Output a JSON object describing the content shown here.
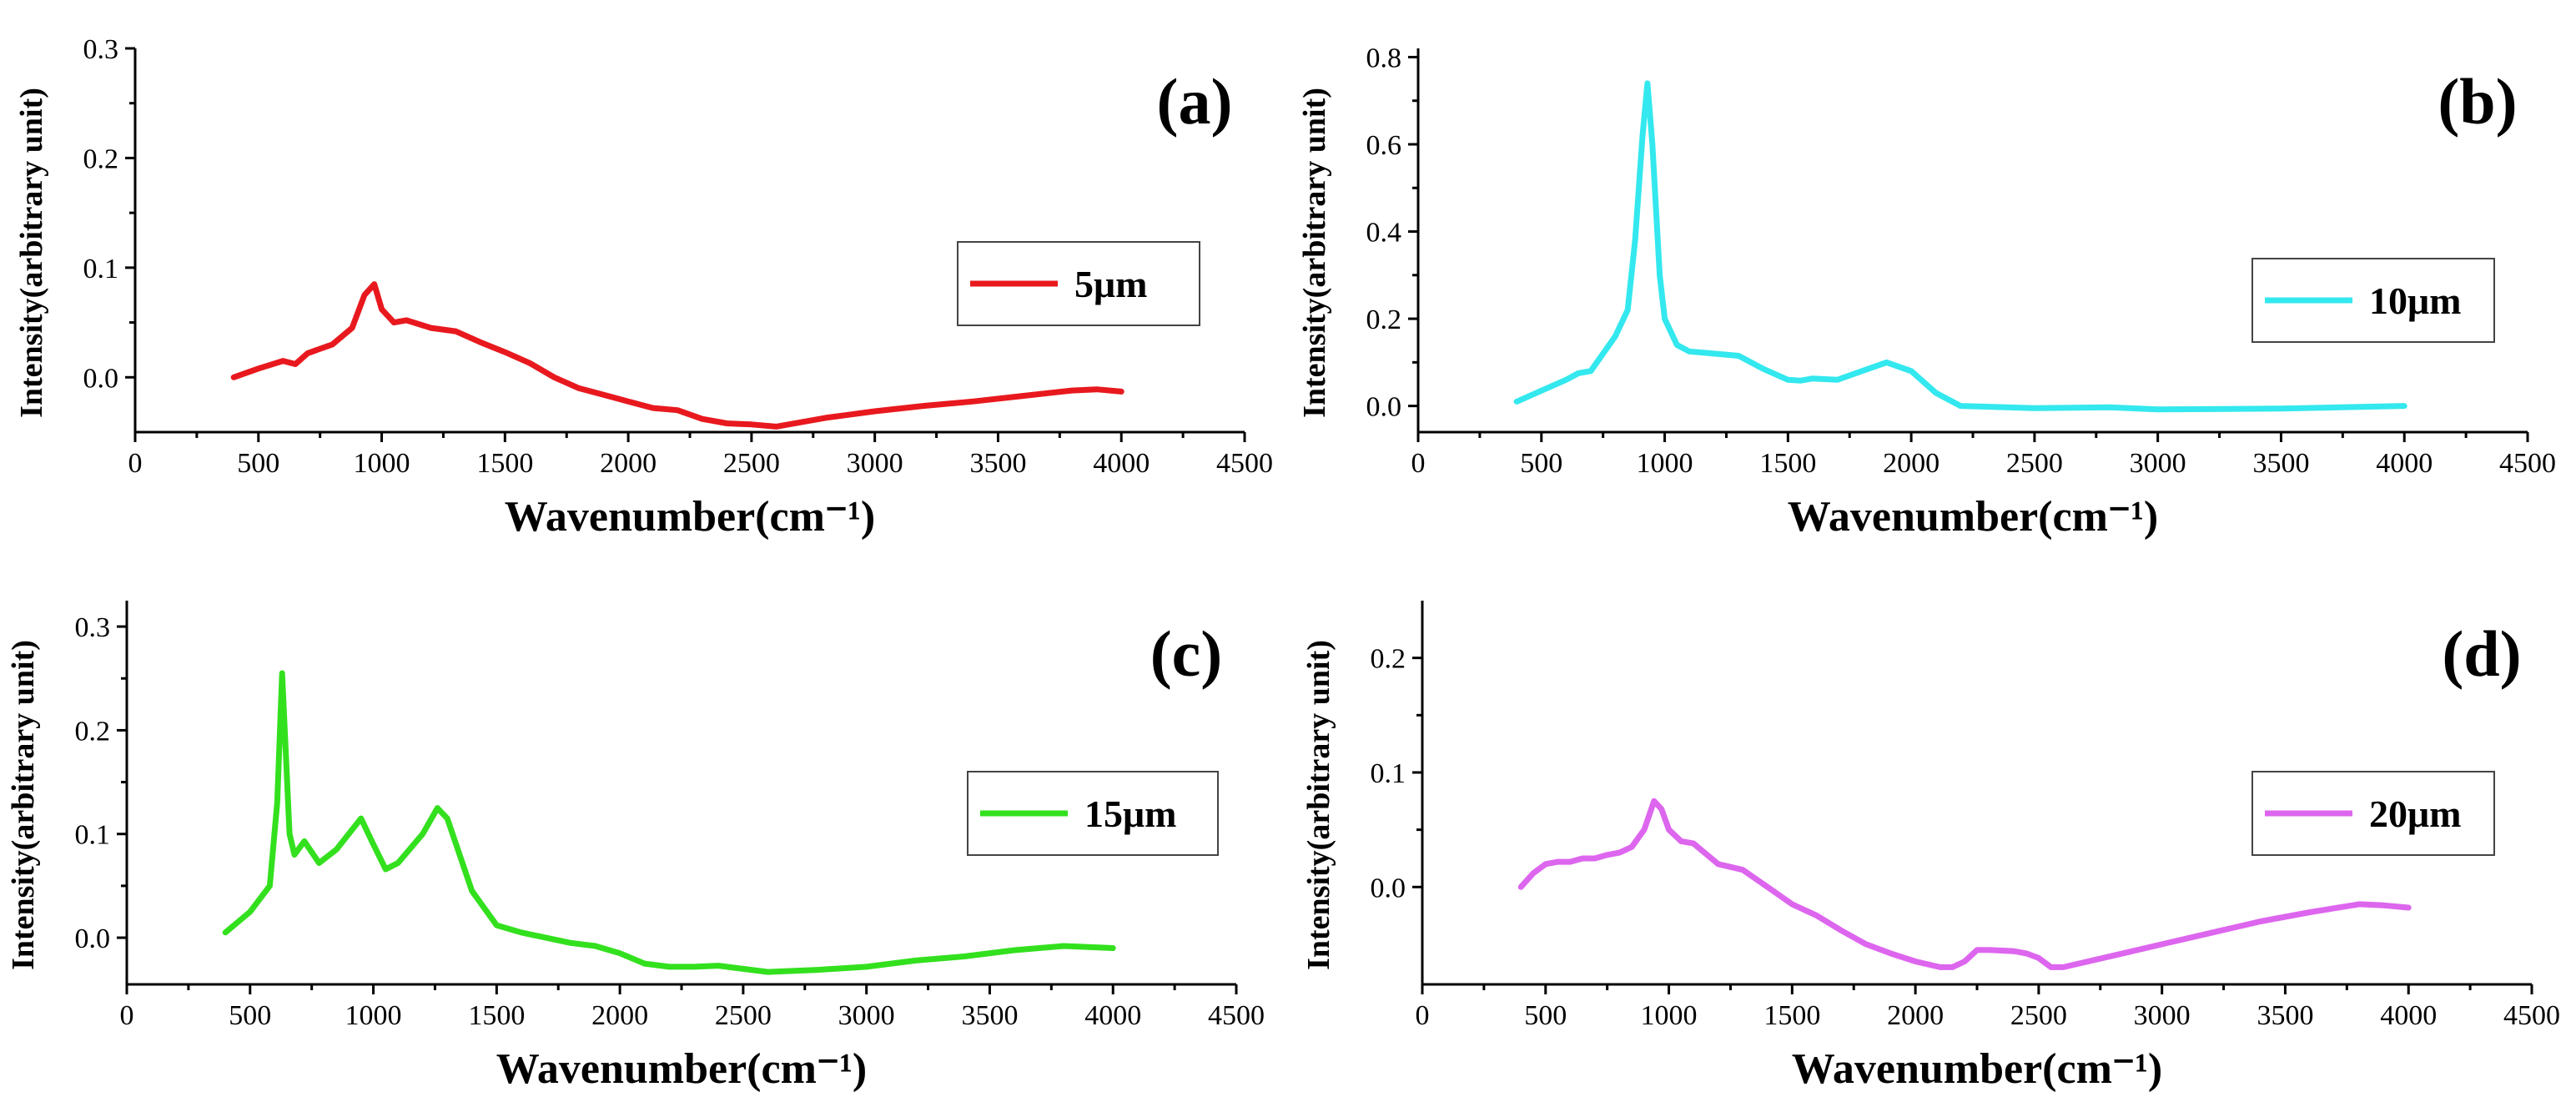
{
  "chart_data": [
    {
      "type": "line",
      "panel_label": "(a)",
      "xlabel": "Wavenumber(cm⁻¹)",
      "ylabel": "Intensity(arbitrary unit)",
      "xlim": [
        0,
        4500
      ],
      "ylim": [
        -0.05,
        0.3
      ],
      "xticks": [
        0,
        500,
        1000,
        1500,
        2000,
        2500,
        3000,
        3500,
        4000,
        4500
      ],
      "yticks": [
        0.0,
        0.1,
        0.2,
        0.3
      ],
      "ytick_labels": [
        "0.0",
        "0.1",
        "0.2",
        "0.3"
      ],
      "legend": "top-right",
      "series": [
        {
          "name": "5μm",
          "color": "#e8191e",
          "x": [
            400,
            500,
            600,
            650,
            700,
            800,
            880,
            930,
            970,
            1000,
            1050,
            1100,
            1200,
            1300,
            1400,
            1500,
            1600,
            1700,
            1800,
            1900,
            2000,
            2100,
            2200,
            2300,
            2400,
            2500,
            2600,
            2800,
            3000,
            3200,
            3400,
            3600,
            3800,
            3900,
            4000
          ],
          "y": [
            0.0,
            0.008,
            0.015,
            0.012,
            0.022,
            0.03,
            0.045,
            0.075,
            0.085,
            0.062,
            0.05,
            0.052,
            0.045,
            0.042,
            0.032,
            0.023,
            0.013,
            0.0,
            -0.01,
            -0.016,
            -0.022,
            -0.028,
            -0.03,
            -0.038,
            -0.042,
            -0.043,
            -0.045,
            -0.037,
            -0.031,
            -0.026,
            -0.022,
            -0.017,
            -0.012,
            -0.011,
            -0.013
          ]
        }
      ]
    },
    {
      "type": "line",
      "panel_label": "(b)",
      "xlabel": "Wavenumber(cm⁻¹)",
      "ylabel": "Intensity(arbitrary unit)",
      "xlim": [
        0,
        4500
      ],
      "ylim": [
        -0.06,
        0.82
      ],
      "xticks": [
        0,
        500,
        1000,
        1500,
        2000,
        2500,
        3000,
        3500,
        4000,
        4500
      ],
      "yticks": [
        0.0,
        0.2,
        0.4,
        0.6,
        0.8
      ],
      "ytick_labels": [
        "0.0",
        "0.2",
        "0.4",
        "0.6",
        "0.8"
      ],
      "legend": "top-right",
      "series": [
        {
          "name": "10μm",
          "color": "#33e8ee",
          "x": [
            400,
            500,
            600,
            650,
            700,
            750,
            800,
            850,
            880,
            910,
            930,
            950,
            980,
            1000,
            1050,
            1100,
            1200,
            1300,
            1400,
            1500,
            1550,
            1600,
            1700,
            1800,
            1900,
            2000,
            2100,
            2200,
            2500,
            2800,
            3000,
            3500,
            4000
          ],
          "y": [
            0.01,
            0.035,
            0.06,
            0.075,
            0.08,
            0.12,
            0.16,
            0.22,
            0.38,
            0.62,
            0.74,
            0.6,
            0.3,
            0.2,
            0.14,
            0.125,
            0.12,
            0.115,
            0.085,
            0.06,
            0.058,
            0.063,
            0.06,
            0.08,
            0.1,
            0.08,
            0.03,
            0.0,
            -0.005,
            -0.003,
            -0.008,
            -0.006,
            0.0
          ]
        }
      ]
    },
    {
      "type": "line",
      "panel_label": "(c)",
      "xlabel": "Wavenumber(cm⁻¹)",
      "ylabel": "Intensity(arbitrary unit)",
      "xlim": [
        0,
        4500
      ],
      "ylim": [
        -0.045,
        0.325
      ],
      "xticks": [
        0,
        500,
        1000,
        1500,
        2000,
        2500,
        3000,
        3500,
        4000,
        4500
      ],
      "yticks": [
        0.0,
        0.1,
        0.2,
        0.3
      ],
      "ytick_labels": [
        "0.0",
        "0.1",
        "0.2",
        "0.3"
      ],
      "legend": "top-right",
      "series": [
        {
          "name": "15μm",
          "color": "#33e01e",
          "x": [
            400,
            500,
            580,
            610,
            630,
            660,
            680,
            720,
            780,
            850,
            950,
            1000,
            1050,
            1100,
            1200,
            1260,
            1300,
            1350,
            1400,
            1500,
            1600,
            1700,
            1800,
            1900,
            2000,
            2100,
            2200,
            2300,
            2400,
            2500,
            2600,
            2800,
            3000,
            3200,
            3400,
            3600,
            3800,
            4000
          ],
          "y": [
            0.005,
            0.025,
            0.05,
            0.13,
            0.255,
            0.1,
            0.08,
            0.093,
            0.072,
            0.085,
            0.115,
            0.09,
            0.066,
            0.072,
            0.1,
            0.125,
            0.115,
            0.08,
            0.045,
            0.012,
            0.005,
            0.0,
            -0.005,
            -0.008,
            -0.015,
            -0.025,
            -0.028,
            -0.028,
            -0.027,
            -0.03,
            -0.033,
            -0.031,
            -0.028,
            -0.022,
            -0.018,
            -0.012,
            -0.008,
            -0.01
          ]
        }
      ]
    },
    {
      "type": "line",
      "panel_label": "(d)",
      "xlabel": "Wavenumber(cm⁻¹)",
      "ylabel": "Intensity(arbitrary unit)",
      "xlim": [
        0,
        4500
      ],
      "ylim": [
        -0.085,
        0.25
      ],
      "xticks": [
        0,
        500,
        1000,
        1500,
        2000,
        2500,
        3000,
        3500,
        4000,
        4500
      ],
      "yticks": [
        0.0,
        0.1,
        0.2
      ],
      "ytick_labels": [
        "0.0",
        "0.1",
        "0.2"
      ],
      "legend": "top-right",
      "series": [
        {
          "name": "20μm",
          "color": "#dd66ee",
          "x": [
            400,
            450,
            500,
            550,
            600,
            650,
            700,
            750,
            800,
            850,
            900,
            940,
            970,
            1000,
            1050,
            1100,
            1200,
            1300,
            1400,
            1500,
            1600,
            1700,
            1800,
            1900,
            2000,
            2100,
            2150,
            2200,
            2250,
            2300,
            2400,
            2450,
            2500,
            2550,
            2600,
            2800,
            3000,
            3200,
            3400,
            3600,
            3800,
            3900,
            4000
          ],
          "y": [
            0.0,
            0.012,
            0.02,
            0.022,
            0.022,
            0.025,
            0.025,
            0.028,
            0.03,
            0.035,
            0.05,
            0.075,
            0.068,
            0.05,
            0.04,
            0.038,
            0.02,
            0.015,
            0.0,
            -0.015,
            -0.025,
            -0.038,
            -0.05,
            -0.058,
            -0.065,
            -0.07,
            -0.07,
            -0.065,
            -0.055,
            -0.055,
            -0.056,
            -0.058,
            -0.062,
            -0.07,
            -0.07,
            -0.06,
            -0.05,
            -0.04,
            -0.03,
            -0.022,
            -0.015,
            -0.016,
            -0.018
          ]
        }
      ]
    }
  ]
}
